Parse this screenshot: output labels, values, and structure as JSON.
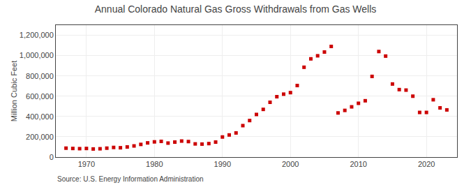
{
  "chart_data": {
    "type": "scatter",
    "title": "Annual Colorado Natural Gas Gross Withdrawals from Gas Wells",
    "y_label": "Million Cubic Feet",
    "annotations": [
      "Source: U.S. Energy Information Administration"
    ],
    "x": [
      1967,
      1968,
      1969,
      1970,
      1971,
      1972,
      1973,
      1974,
      1975,
      1976,
      1977,
      1978,
      1979,
      1980,
      1981,
      1982,
      1983,
      1984,
      1985,
      1986,
      1987,
      1988,
      1989,
      1990,
      1991,
      1992,
      1993,
      1994,
      1995,
      1996,
      1997,
      1998,
      1999,
      2000,
      2001,
      2002,
      2003,
      2004,
      2005,
      2006,
      2007,
      2008,
      2009,
      2010,
      2011,
      2012,
      2013,
      2014,
      2015,
      2016,
      2017,
      2018,
      2019,
      2020,
      2021,
      2022,
      2023
    ],
    "values": [
      88000,
      85000,
      83000,
      85000,
      80000,
      82000,
      88000,
      95000,
      92000,
      100000,
      110000,
      125000,
      140000,
      150000,
      155000,
      138000,
      148000,
      158000,
      153000,
      130000,
      128000,
      133000,
      148000,
      198000,
      218000,
      238000,
      310000,
      360000,
      420000,
      470000,
      540000,
      595000,
      620000,
      635000,
      705000,
      885000,
      968000,
      998000,
      1035000,
      1090000,
      435000,
      460000,
      495000,
      530000,
      555000,
      795000,
      1040000,
      995000,
      720000,
      665000,
      660000,
      600000,
      440000,
      440000,
      565000,
      485000,
      465000
    ],
    "color": "#cc0000",
    "marker": "square",
    "xlim": [
      1965.5,
      2024.5
    ],
    "xticks": [
      1970,
      1980,
      1990,
      2000,
      2010,
      2020
    ],
    "ylim": [
      0,
      1300000
    ],
    "yticks": [
      0,
      {
        "value": 200000,
        "label": "200,000"
      },
      {
        "value": 400000,
        "label": "400,000"
      },
      {
        "value": 600000,
        "label": "600,000"
      },
      {
        "value": 800000,
        "label": "800,000"
      },
      {
        "value": 1000000,
        "label": "1,000,000"
      },
      {
        "value": 1200000,
        "label": "1,200,000"
      }
    ],
    "grid": true
  }
}
